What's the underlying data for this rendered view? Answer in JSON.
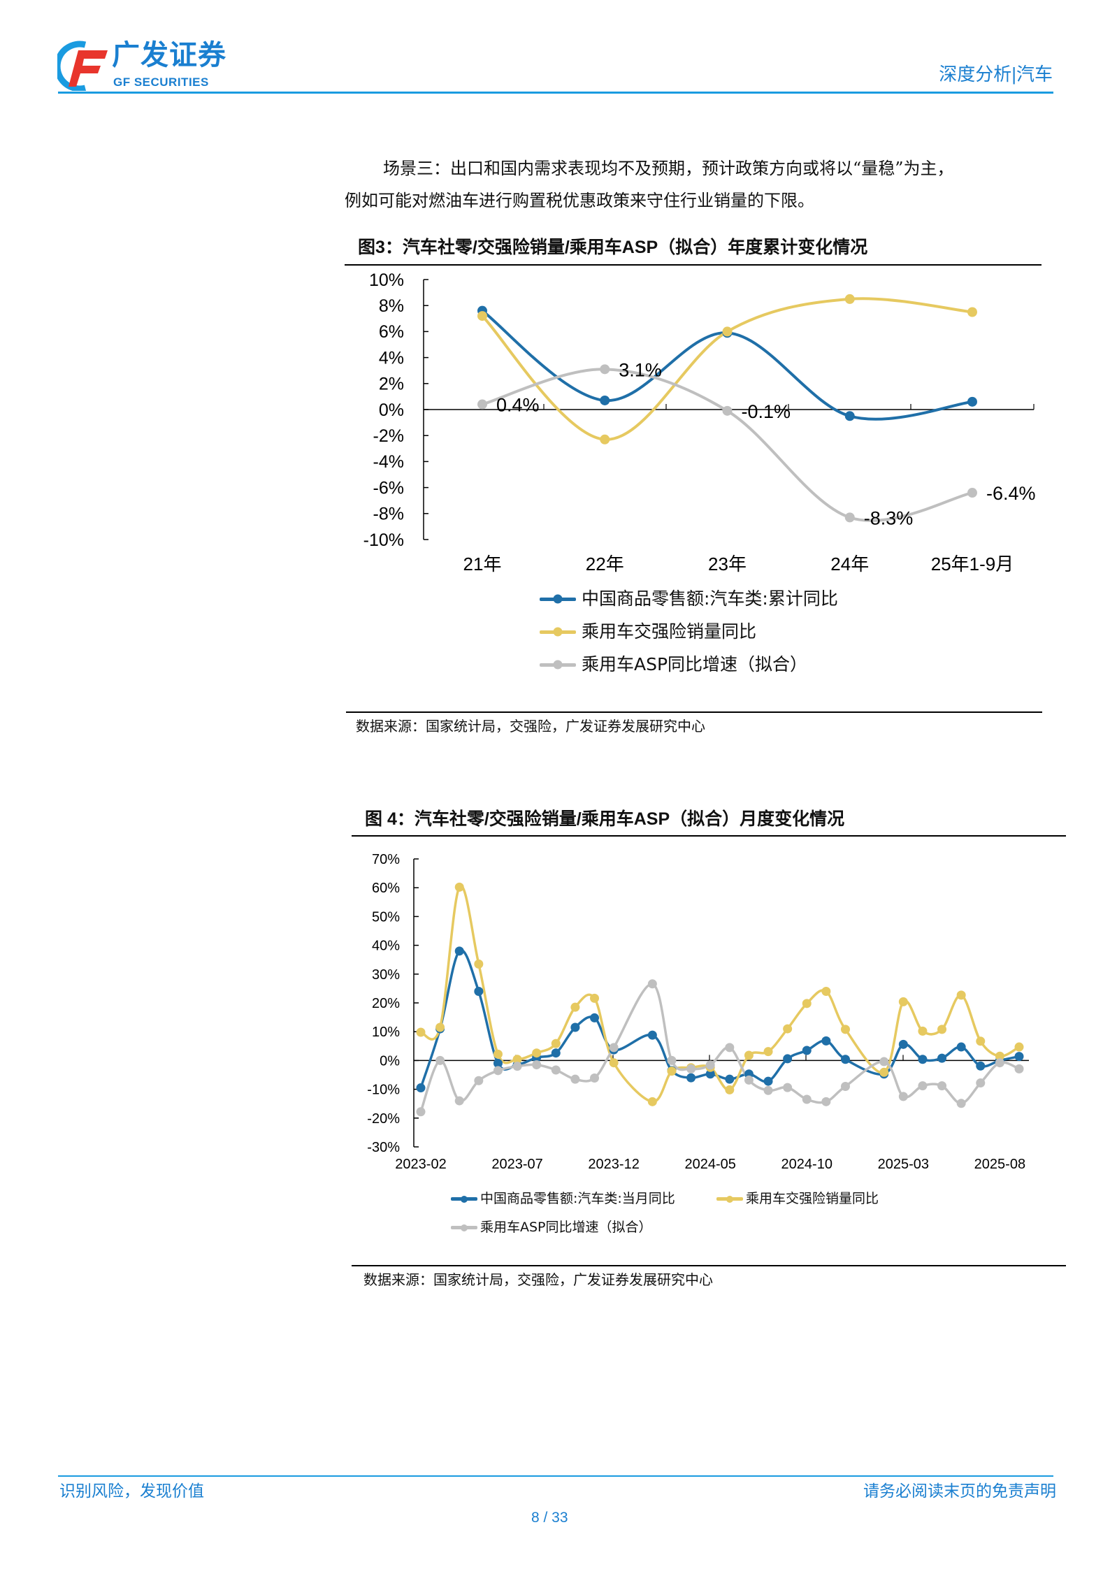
{
  "header": {
    "logo_cn": "广发证券",
    "logo_en": "GF SECURITIES",
    "section": "深度分析|汽车",
    "brand_color": "#1a9be0"
  },
  "body": {
    "paragraph_line1": "场景三：出口和国内需求表现均不及预期，预计政策方向或将以“量稳”为主，",
    "paragraph_line2": "例如可能对燃油车进行购置税优惠政策来守住行业销量的下限。"
  },
  "figure3": {
    "title": "图3：汽车社零/交强险销量/乘用车ASP（拟合）年度累计变化情况",
    "source": "数据来源：国家统计局，交强险，广发证券发展研究中心"
  },
  "figure4": {
    "title": "图 4：汽车社零/交强险销量/乘用车ASP（拟合）月度变化情况",
    "source": "数据来源：国家统计局，交强险，广发证券发展研究中心"
  },
  "chart_data": [
    {
      "type": "line",
      "smooth": true,
      "categories": [
        "21年",
        "22年",
        "23年",
        "24年",
        "25年1-9月"
      ],
      "ylim": [
        -10,
        10
      ],
      "yticks": [
        "10%",
        "8%",
        "6%",
        "4%",
        "2%",
        "0%",
        "-2%",
        "-4%",
        "-6%",
        "-8%",
        "-10%"
      ],
      "legend_position": "bottom",
      "grid": false,
      "series": [
        {
          "name": "中国商品零售额:汽车类:累计同比",
          "color": "#1f6fa8",
          "values": [
            7.6,
            0.7,
            5.9,
            -0.5,
            0.6
          ]
        },
        {
          "name": "乘用车交强险销量同比",
          "color": "#e6c960",
          "values": [
            7.2,
            -2.3,
            6.0,
            8.5,
            7.5
          ]
        },
        {
          "name": "乘用车ASP同比增速（拟合）",
          "color": "#bfbfbf",
          "values": [
            0.4,
            3.1,
            -0.1,
            -8.3,
            -6.4
          ],
          "data_labels": [
            "0.4%",
            "3.1%",
            "-0.1%",
            "-8.3%",
            "-6.4%"
          ]
        }
      ]
    },
    {
      "type": "line",
      "smooth": true,
      "x": [
        "2023-02",
        "2023-03",
        "2023-04",
        "2023-05",
        "2023-06",
        "2023-07",
        "2023-08",
        "2023-09",
        "2023-10",
        "2023-11",
        "2023-12",
        "2024-01",
        "2024-02",
        "2024-03",
        "2024-04",
        "2024-05",
        "2024-06",
        "2024-07",
        "2024-08",
        "2024-09",
        "2024-10",
        "2024-11",
        "2024-12",
        "2025-01",
        "2025-02",
        "2025-03",
        "2025-04",
        "2025-05",
        "2025-06",
        "2025-07",
        "2025-08",
        "2025-09"
      ],
      "xticks": [
        "2023-02",
        "2023-07",
        "2023-12",
        "2024-05",
        "2024-10",
        "2025-03",
        "2025-08"
      ],
      "ylim": [
        -30,
        70
      ],
      "yticks": [
        "70%",
        "60%",
        "50%",
        "40%",
        "30%",
        "20%",
        "10%",
        "0%",
        "-10%",
        "-20%",
        "-30%"
      ],
      "legend_position": "bottom",
      "grid": false,
      "series": [
        {
          "name": "中国商品零售额:汽车类:当月同比",
          "color": "#1f6fa8",
          "values": [
            -9.5,
            11.0,
            38.0,
            24.0,
            -1.0,
            -1.5,
            1.0,
            2.6,
            11.5,
            14.8,
            3.7,
            null,
            8.8,
            -3.5,
            -6.0,
            -4.7,
            -6.5,
            -4.7,
            -7.2,
            0.6,
            3.5,
            6.8,
            0.4,
            null,
            -4.7,
            5.6,
            0.4,
            0.8,
            4.7,
            -1.9,
            0.0,
            1.4
          ]
        },
        {
          "name": "乘用车交强险销量同比",
          "color": "#e6c960",
          "values": [
            9.8,
            11.5,
            60.2,
            33.5,
            2.2,
            0.4,
            2.6,
            5.9,
            18.5,
            21.6,
            -0.8,
            null,
            -14.3,
            -3.7,
            -2.5,
            -2.4,
            -10.2,
            1.8,
            3.1,
            11.0,
            19.8,
            24.0,
            10.8,
            null,
            -4.1,
            20.4,
            10.2,
            10.8,
            22.7,
            6.7,
            1.5,
            4.7
          ]
        },
        {
          "name": "乘用车ASP同比增速（拟合）",
          "color": "#bfbfbf",
          "values": [
            -17.8,
            0.0,
            -14.0,
            -7.0,
            -3.5,
            -2.0,
            -1.5,
            -3.3,
            -6.5,
            -6.1,
            4.5,
            null,
            26.6,
            0.0,
            -2.9,
            -1.6,
            4.5,
            -6.8,
            -10.4,
            -9.4,
            -13.5,
            -14.3,
            -9.0,
            null,
            -0.4,
            -12.5,
            -8.8,
            -8.8,
            -14.9,
            -7.8,
            -0.8,
            -2.9
          ]
        }
      ]
    }
  ],
  "footer": {
    "slogan": "识别风险，发现价值",
    "disclaimer": "请务必阅读末页的免责声明",
    "page": "8 / 33"
  }
}
